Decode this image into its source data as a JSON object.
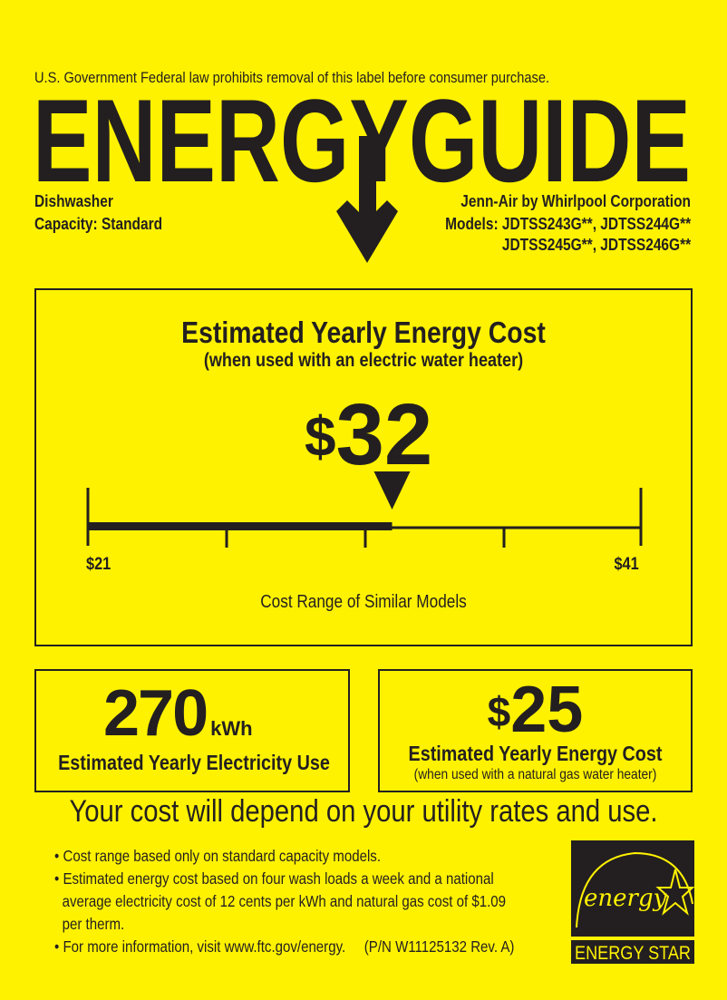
{
  "header": {
    "notice": "U.S. Government  Federal law prohibits removal of this label before consumer purchase.",
    "logo_text": "ENERGYGUIDE"
  },
  "product": {
    "type": "Dishwasher",
    "capacity": "Capacity: Standard",
    "manufacturer": "Jenn-Air by Whirlpool Corporation",
    "models_line1": "Models: JDTSS243G**, JDTSS244G**",
    "models_line2": "JDTSS245G**, JDTSS246G**"
  },
  "main_cost": {
    "title": "Estimated Yearly Energy Cost",
    "subtitle": "(when used with an electric water heater)",
    "currency": "$",
    "value": "32",
    "range_min_label": "$21",
    "range_max_label": "$41",
    "range_min": 21,
    "range_max": 41,
    "marker_value": 32,
    "range_caption": "Cost Range of Similar Models"
  },
  "electricity": {
    "value": "270",
    "unit": "kWh",
    "label": "Estimated Yearly Electricity Use"
  },
  "gas_cost": {
    "currency": "$",
    "value": "25",
    "label": "Estimated Yearly Energy Cost",
    "sublabel": "(when used with a natural gas water heater)"
  },
  "disclaimer": "Your cost will depend on your utility rates and use.",
  "notes": {
    "bullet1": "Cost range based only on standard capacity models.",
    "bullet2_line1": "Estimated energy cost based on four wash loads a week and a national",
    "bullet2_line2": "average electricity cost of 12 cents per kWh and natural gas cost of $1.09",
    "bullet2_line3": "per therm.",
    "bullet3": "For more information, visit www.ftc.gov/energy.",
    "part_number": "(P/N W11125132 Rev. A)"
  },
  "energy_star": {
    "script_text": "energy",
    "label": "ENERGY STAR"
  },
  "colors": {
    "background": "#fff200",
    "ink": "#231f20"
  }
}
